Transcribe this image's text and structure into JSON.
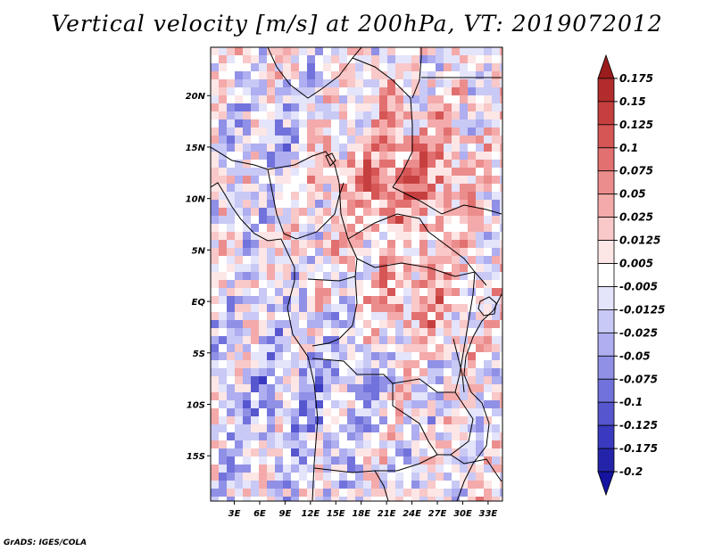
{
  "chart_data": {
    "type": "heatmap",
    "title": "Vertical velocity [m/s] at 200hPa, VT: 2019072012",
    "variable": "Vertical velocity",
    "units": "m/s",
    "level": "200hPa",
    "valid_time": "2019072012",
    "x_axis": {
      "ticks": [
        3,
        6,
        9,
        12,
        15,
        18,
        21,
        24,
        27,
        30,
        33
      ],
      "tick_labels": [
        "3E",
        "6E",
        "9E",
        "12E",
        "15E",
        "18E",
        "21E",
        "24E",
        "27E",
        "30E",
        "33E"
      ],
      "range": [
        0.2,
        34.7
      ]
    },
    "y_axis": {
      "ticks": [
        20,
        15,
        10,
        5,
        0,
        -5,
        -10,
        -15
      ],
      "tick_labels": [
        "20N",
        "15N",
        "10N",
        "5N",
        "EQ",
        "5S",
        "10S",
        "15S"
      ],
      "range": [
        -19.4,
        24.7
      ]
    },
    "colorbar": {
      "labels": [
        "0.175",
        "0.15",
        "0.125",
        "0.1",
        "0.075",
        "0.05",
        "0.025",
        "0.0125",
        "0.005",
        "-0.005",
        "-0.0125",
        "-0.025",
        "-0.05",
        "-0.075",
        "-0.1",
        "-0.125",
        "-0.175",
        "-0.2"
      ],
      "colors": [
        "#9b1c1c",
        "#b32c2c",
        "#c63f3f",
        "#d65555",
        "#e27070",
        "#ec8d8d",
        "#f4aaaa",
        "#f9c8c8",
        "#fde6e6",
        "#ffffff",
        "#e4e4fb",
        "#c9c9f6",
        "#aeaef0",
        "#9090e6",
        "#7272dc",
        "#5656cf",
        "#3a3ac0",
        "#2424ab",
        "#1414a0"
      ]
    }
  },
  "footer": "GrADS: IGES/COLA"
}
